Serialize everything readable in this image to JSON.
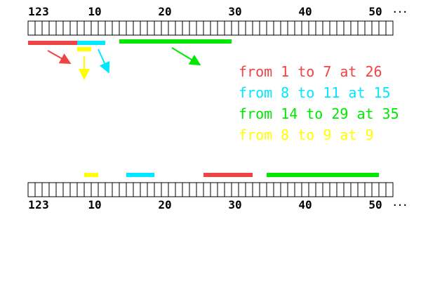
{
  "cell_labels": [
    1,
    2,
    3,
    10,
    20,
    30,
    40,
    50
  ],
  "ellipsis": "...",
  "words": {
    "from": "from",
    "to": "to",
    "at": "at"
  },
  "moves": [
    {
      "from": 1,
      "to": 7,
      "at": 26,
      "color": "#f04444"
    },
    {
      "from": 8,
      "to": 11,
      "at": 15,
      "color": "#00e8ff"
    },
    {
      "from": 14,
      "to": 29,
      "at": 35,
      "color": "#00e800"
    },
    {
      "from": 8,
      "to": 9,
      "at": 9,
      "color": "#ffff00"
    }
  ]
}
